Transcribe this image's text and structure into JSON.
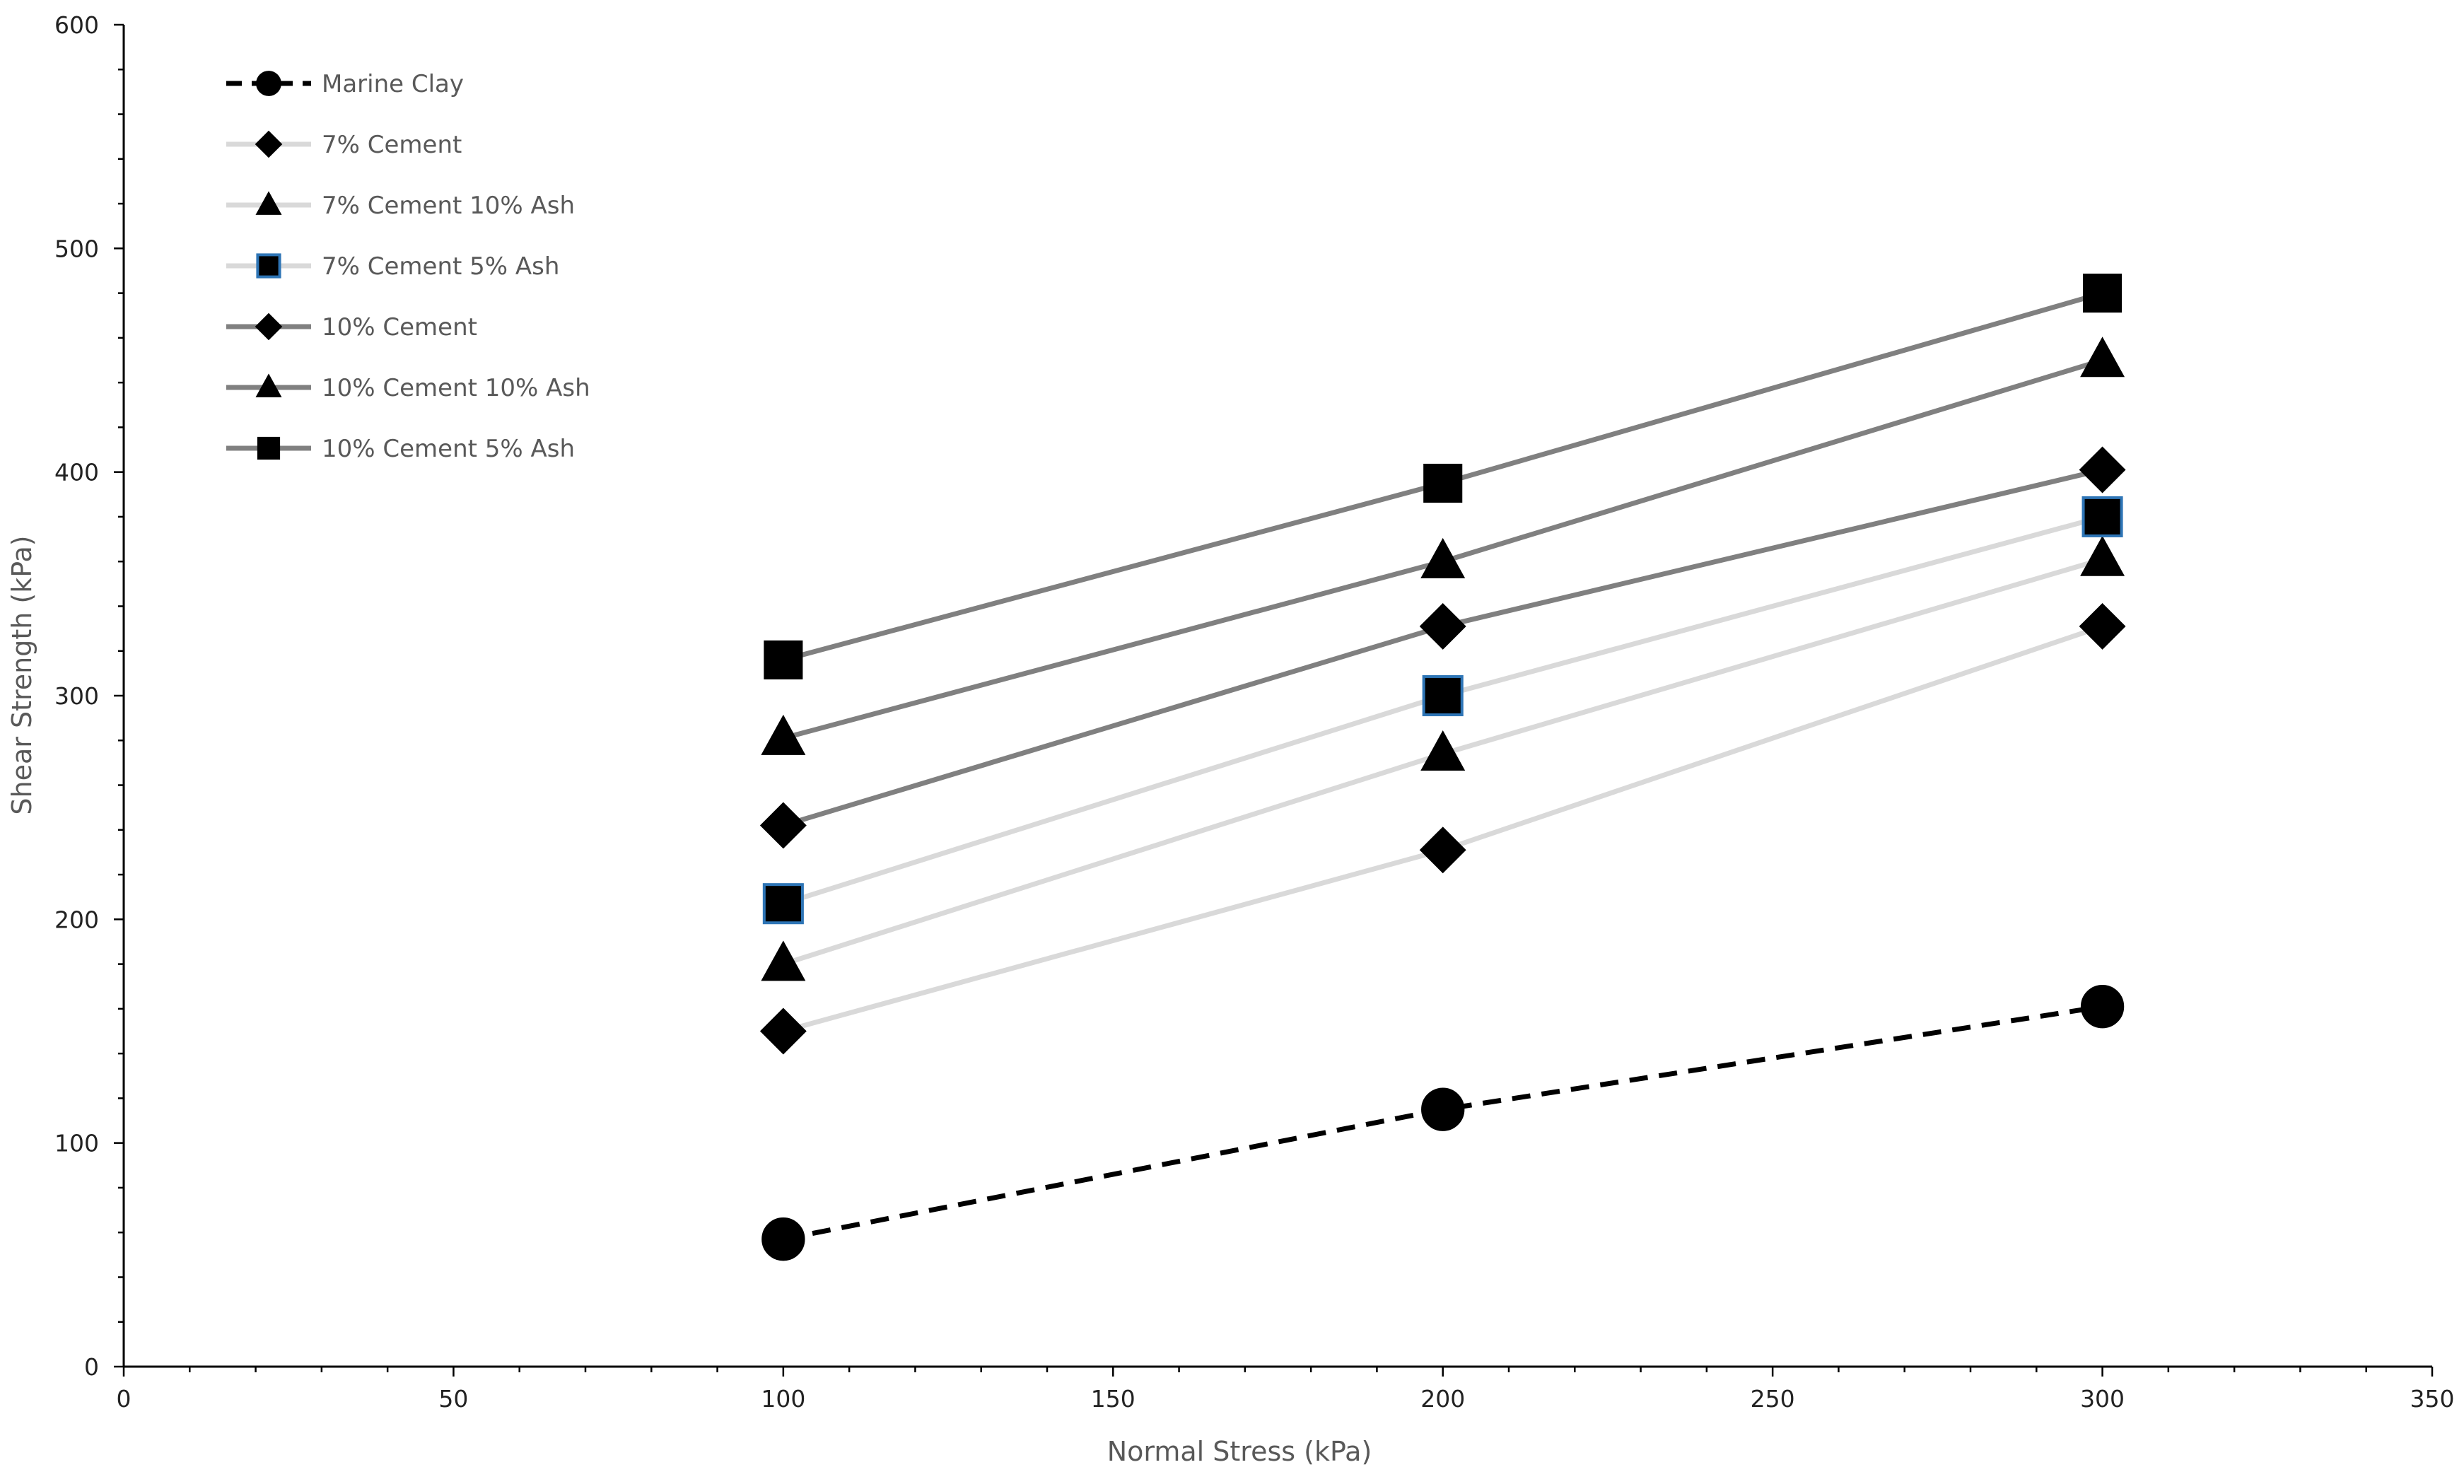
{
  "chart_data": {
    "type": "line",
    "title": "",
    "xlabel": "Normal Stress (kPa)",
    "ylabel": "Shear Strength (kPa)",
    "xlim": [
      0,
      350
    ],
    "ylim": [
      0,
      600
    ],
    "x_ticks": [
      0,
      50,
      100,
      150,
      200,
      250,
      300,
      350
    ],
    "y_ticks": [
      0,
      100,
      200,
      300,
      400,
      500,
      600
    ],
    "x_tick_labels": [
      "0",
      "50",
      "100",
      "150",
      "200",
      "250",
      "300",
      "350"
    ],
    "y_tick_labels": [
      "0",
      "100",
      "200",
      "300",
      "400",
      "500",
      "600"
    ],
    "grid": false,
    "legend_position": "top-left",
    "x": [
      100,
      200,
      300
    ],
    "series": [
      {
        "name": "Marine Clay",
        "values": [
          57,
          115,
          161
        ],
        "line_color": "#000000",
        "line_style": "dashed",
        "marker": "circle",
        "marker_fill": "#000000"
      },
      {
        "name": "7% Cement",
        "values": [
          150,
          231,
          331
        ],
        "line_color": "#d9d9d9",
        "line_style": "solid",
        "marker": "diamond",
        "marker_fill": "#000000"
      },
      {
        "name": "7% Cement 10% Ash",
        "values": [
          180,
          274,
          361
        ],
        "line_color": "#d9d9d9",
        "line_style": "solid",
        "marker": "triangle",
        "marker_fill": "#000000"
      },
      {
        "name": "7% Cement 5% Ash",
        "values": [
          207,
          300,
          380
        ],
        "line_color": "#d9d9d9",
        "line_style": "solid",
        "marker": "square",
        "marker_fill": "#000000",
        "marker_edge": "#2e75b6"
      },
      {
        "name": "10% Cement",
        "values": [
          242,
          331,
          401
        ],
        "line_color": "#808080",
        "line_style": "solid",
        "marker": "diamond",
        "marker_fill": "#000000"
      },
      {
        "name": "10% Cement 10% Ash",
        "values": [
          281,
          360,
          450
        ],
        "line_color": "#808080",
        "line_style": "solid",
        "marker": "triangle",
        "marker_fill": "#000000"
      },
      {
        "name": "10% Cement 5% Ash",
        "values": [
          316,
          395,
          480
        ],
        "line_color": "#808080",
        "line_style": "solid",
        "marker": "square",
        "marker_fill": "#000000"
      }
    ]
  }
}
